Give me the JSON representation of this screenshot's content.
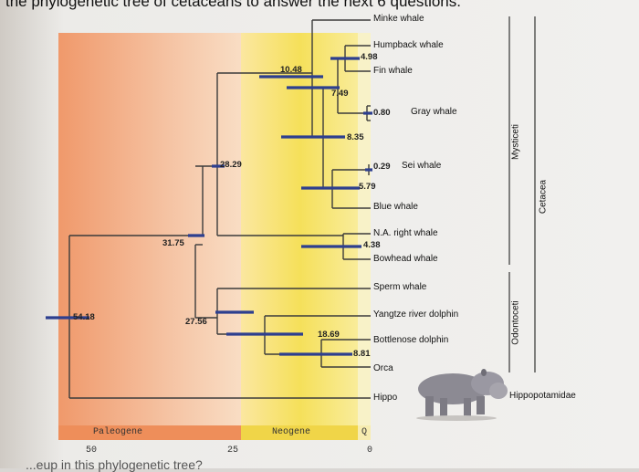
{
  "header": {
    "left": "the phylogenetic tree of cetaceans to answer the next 6 questions.",
    "bottom": "...eup in this phylogenetic tree?"
  },
  "taxa": {
    "minke": "Minke whale",
    "humpback": "Humpback whale",
    "fin": "Fin whale",
    "gray": "Gray whale",
    "sei": "Sei whale",
    "blue": "Blue whale",
    "right": "N.A. right whale",
    "bowhead": "Bowhead whale",
    "sperm": "Sperm whale",
    "yangtze": "Yangtze river dolphin",
    "bottlenose": "Bottlenose dolphin",
    "orca": "Orca",
    "hippo": "Hippo"
  },
  "nodes": {
    "n5418": "54.18",
    "n3175": "31.75",
    "n2829": "28.29",
    "n2756": "27.56",
    "n1869": "18.69",
    "n1048": "10.48",
    "n881": "8.81",
    "n835": "8.35",
    "n749": "7.49",
    "n579": "5.79",
    "n498": "4.98",
    "n438": "4.38",
    "n080": "0.80",
    "n029": "0.29"
  },
  "groups": {
    "mysticeti": "Mysticeti",
    "cetacea": "Cetacea",
    "odontoceti": "Odontoceti",
    "hippopotamidae": "Hippopotamidae"
  },
  "timescale": {
    "paleogene": "Paleogene",
    "neogene": "Neogene",
    "q": "Q",
    "t50": "50",
    "t25": "25",
    "t0": "0"
  },
  "colors": {
    "paleogene": "#f2a57a",
    "neogene": "#f4e57a",
    "branch": "#3b3b3b",
    "bar": "#2d3f8f"
  }
}
